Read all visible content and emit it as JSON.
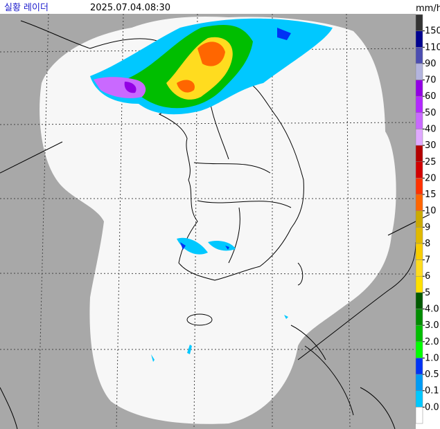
{
  "header": {
    "title": "실황 레이더",
    "timestamp": "2025.07.04.08:30"
  },
  "legend": {
    "unit": "mm/h",
    "labels": [
      "150",
      "110",
      "90",
      "70",
      "60",
      "50",
      "40",
      "30",
      "25",
      "20",
      "15",
      "10",
      "9",
      "8",
      "7",
      "6",
      "5",
      "4.0",
      "3.0",
      "2.0",
      "1.0",
      "0.5",
      "0.1",
      "0.0"
    ],
    "colors": [
      "#333333",
      "#000390",
      "#4c4eb1",
      "#b3b4de",
      "#9300e4",
      "#b329ff",
      "#c969ff",
      "#e0a9ff",
      "#b40000",
      "#d20000",
      "#ff3200",
      "#ff6600",
      "#ccaa00",
      "#e0b900",
      "#f9cd00",
      "#ffdc1f",
      "#ffe100",
      "#005a00",
      "#008c00",
      "#00be00",
      "#00ff00",
      "#0033f5",
      "#009bf5",
      "#00c8ff",
      "#ffffff"
    ]
  }
}
